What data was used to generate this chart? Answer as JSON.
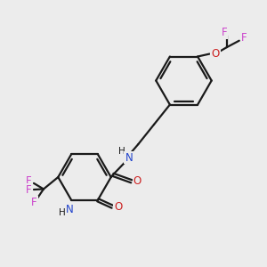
{
  "background_color": "#ececec",
  "bond_color": "#1a1a1a",
  "N_color": "#2244cc",
  "O_color": "#cc2222",
  "F_color": "#cc44cc",
  "line_width": 1.6,
  "dbo": 0.055,
  "figsize": [
    3.0,
    3.0
  ],
  "dpi": 100,
  "xlim": [
    0,
    10
  ],
  "ylim": [
    0,
    10
  ]
}
